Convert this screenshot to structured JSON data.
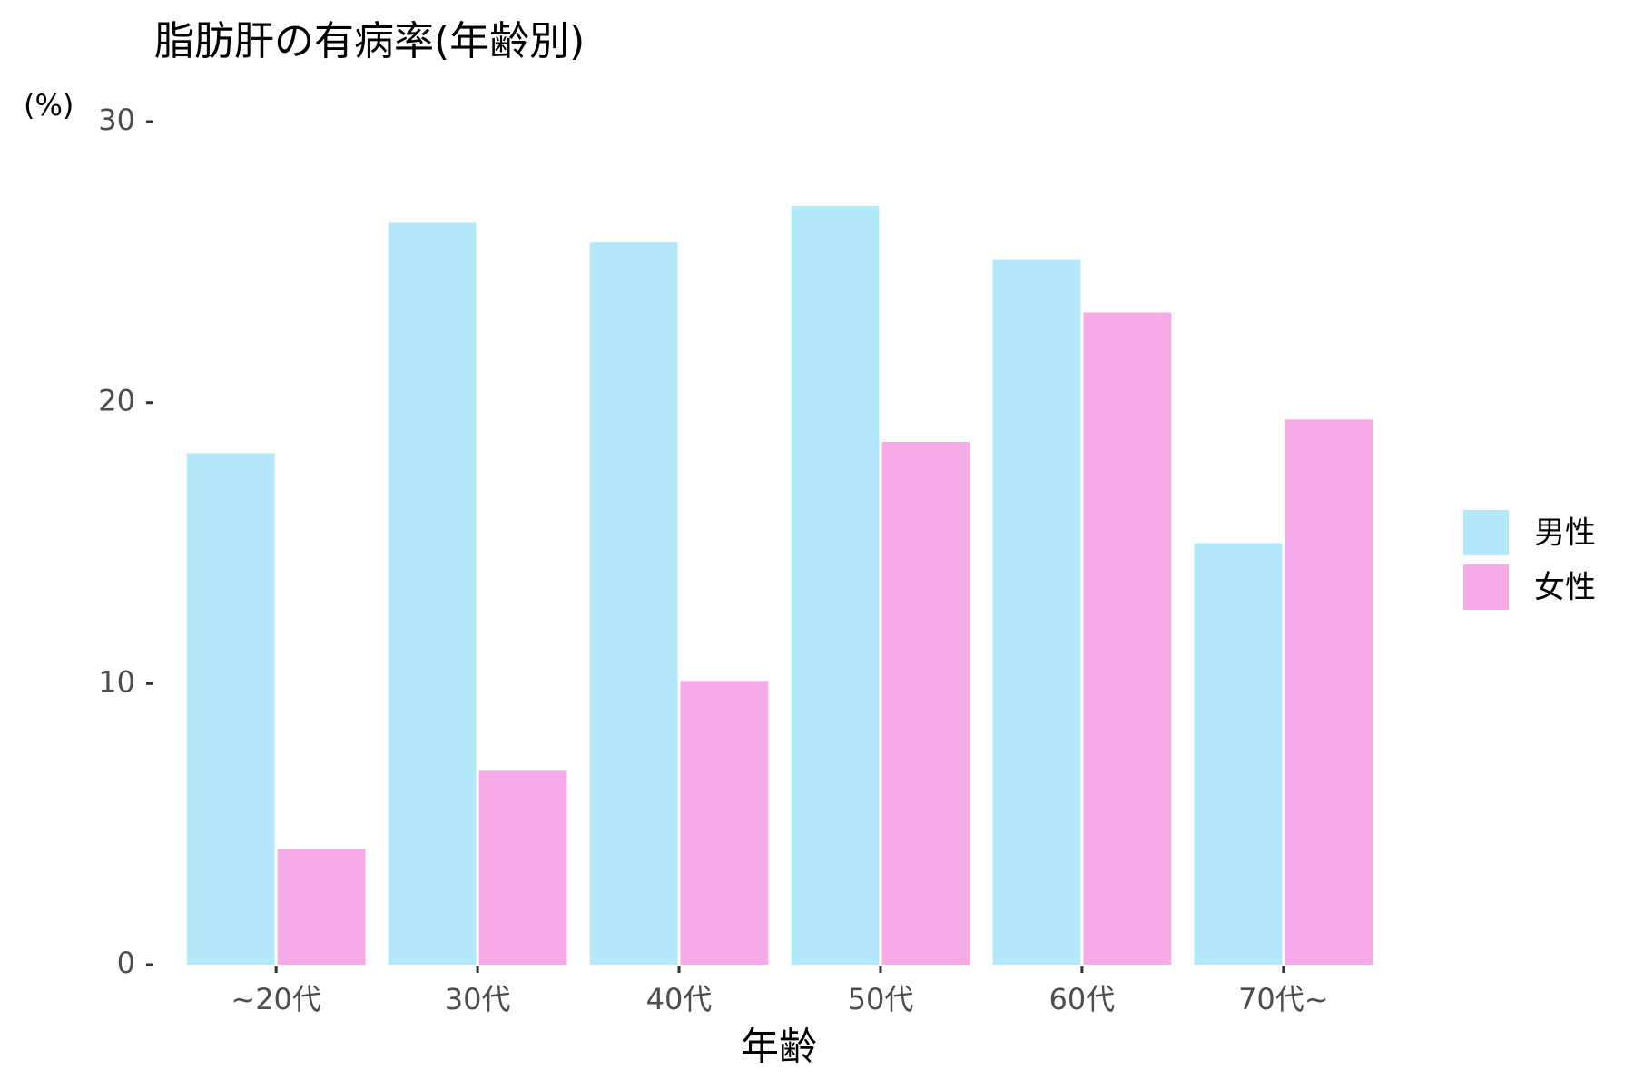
{
  "chart_data": {
    "type": "bar",
    "title": "脂肪肝の有病率(年齢別)",
    "y_label": "(%)",
    "x_label": "年齢",
    "categories": [
      "~20代",
      "30代",
      "40代",
      "50代",
      "60代",
      "70代~"
    ],
    "series": [
      {
        "name": "男性",
        "color": "#b3e8fb",
        "values": [
          18.2,
          26.4,
          25.7,
          27.0,
          25.1,
          15.0
        ]
      },
      {
        "name": "女性",
        "color": "#f7aae8",
        "values": [
          4.1,
          6.9,
          10.1,
          18.6,
          23.2,
          19.4
        ]
      }
    ],
    "ylim": [
      0,
      30
    ],
    "yticks": [
      0,
      10,
      20,
      30
    ],
    "grid": false,
    "legend": "right"
  }
}
